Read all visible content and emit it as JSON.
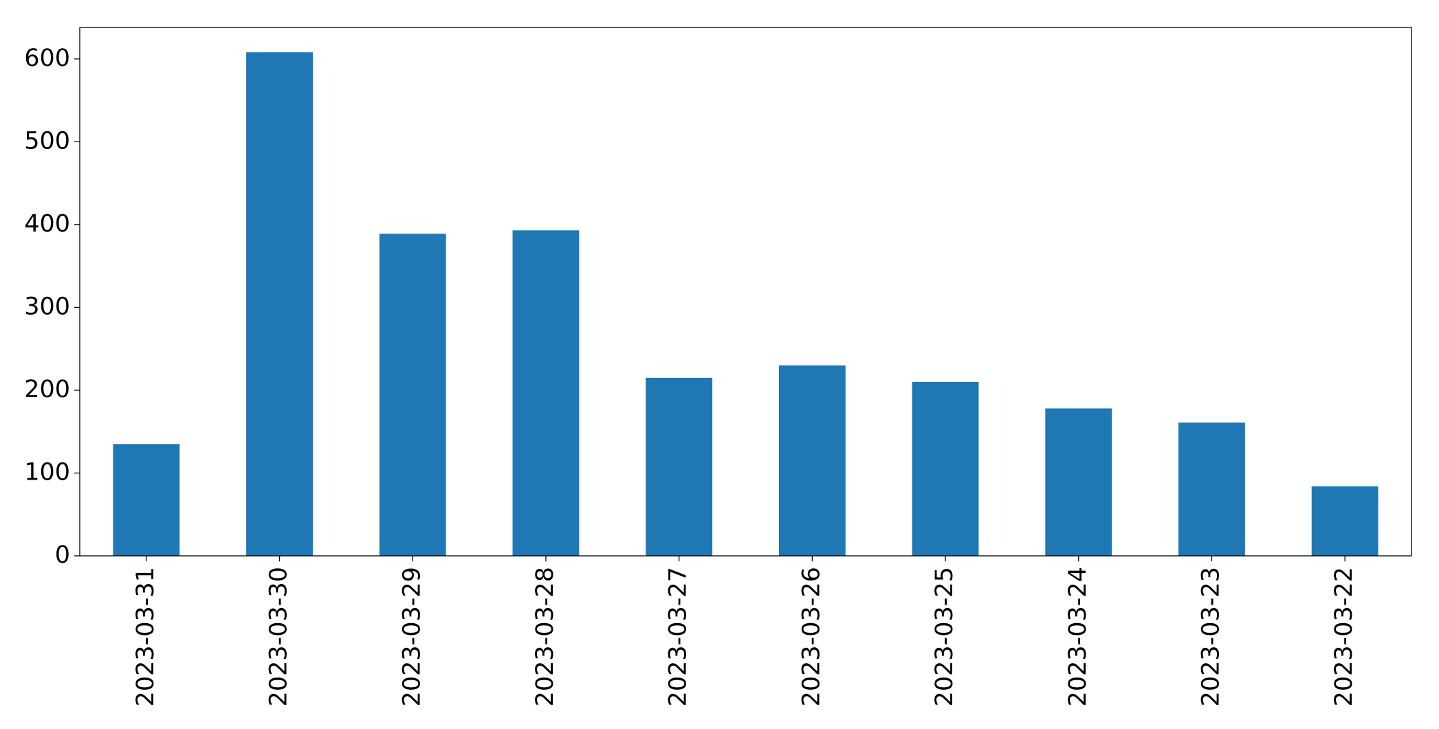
{
  "chart_data": {
    "type": "bar",
    "categories": [
      "2023-03-31",
      "2023-03-30",
      "2023-03-29",
      "2023-03-28",
      "2023-03-27",
      "2023-03-26",
      "2023-03-25",
      "2023-03-24",
      "2023-03-23",
      "2023-03-22"
    ],
    "values": [
      135,
      608,
      389,
      393,
      215,
      230,
      210,
      178,
      161,
      84
    ],
    "color": "#1f77b4",
    "ylim": [
      0,
      638
    ],
    "yticks": [
      0,
      100,
      200,
      300,
      400,
      500,
      600
    ],
    "grid": false
  }
}
